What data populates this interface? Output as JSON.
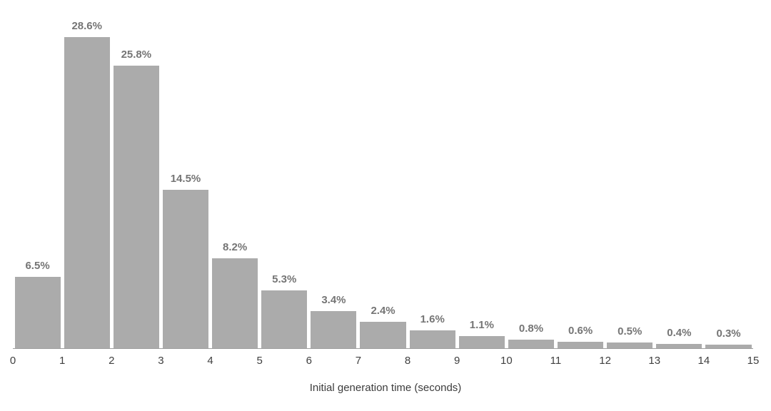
{
  "chart_data": {
    "type": "bar",
    "subtype": "histogram",
    "title": "",
    "xlabel": "Initial generation time (seconds)",
    "ylabel": "",
    "bin_edges": [
      0,
      1,
      2,
      3,
      4,
      5,
      6,
      7,
      8,
      9,
      10,
      11,
      12,
      13,
      14,
      15
    ],
    "values": [
      6.5,
      28.6,
      25.8,
      14.5,
      8.2,
      5.3,
      3.4,
      2.4,
      1.6,
      1.1,
      0.8,
      0.6,
      0.5,
      0.4,
      0.3
    ],
    "labels": [
      "6.5%",
      "28.6%",
      "25.8%",
      "14.5%",
      "8.2%",
      "5.3%",
      "3.4%",
      "2.4%",
      "1.6%",
      "1.1%",
      "0.8%",
      "0.6%",
      "0.5%",
      "0.4%",
      "0.3%"
    ],
    "x_ticks": [
      "0",
      "1",
      "2",
      "3",
      "4",
      "5",
      "6",
      "7",
      "8",
      "9",
      "10",
      "11",
      "12",
      "13",
      "14",
      "15"
    ],
    "ylim": [
      0,
      30
    ],
    "grid": false,
    "legend": false,
    "bar_color": "#ababab",
    "label_color": "#757575",
    "axis_color": "#9e9e9e",
    "tick_color": "#404040"
  }
}
